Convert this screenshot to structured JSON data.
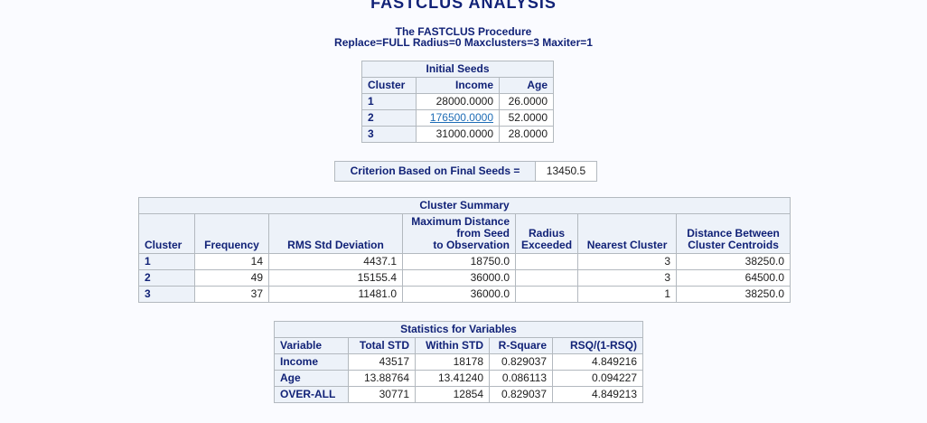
{
  "page": {
    "title": "FASTCLUS ANALYSIS",
    "subtitle1": "The FASTCLUS Procedure",
    "subtitle2": "Replace=FULL Radius=0 Maxclusters=3 Maxiter=1"
  },
  "colors": {
    "header_bg": "#edf2f9",
    "header_text": "#112277",
    "page_bg": "#fafbff",
    "border": "#b3b9bf",
    "link": "#1f6db6"
  },
  "initial_seeds": {
    "caption": "Initial Seeds",
    "columns": [
      "Cluster",
      "Income",
      "Age"
    ],
    "rows": [
      [
        "1",
        "28000.0000",
        "26.0000"
      ],
      [
        "2",
        "176500.0000",
        "52.0000"
      ],
      [
        "3",
        "31000.0000",
        "28.0000"
      ]
    ]
  },
  "criterion": {
    "label": "Criterion Based on Final Seeds =",
    "value": "13450.5"
  },
  "cluster_summary": {
    "caption": "Cluster Summary",
    "columns": [
      "Cluster",
      "Frequency",
      "RMS Std Deviation",
      "Maximum Distance\nfrom Seed\nto Observation",
      "Radius\nExceeded",
      "Nearest Cluster",
      "Distance Between\nCluster Centroids"
    ],
    "rows": [
      [
        "1",
        "14",
        "4437.1",
        "18750.0",
        "",
        "3",
        "38250.0"
      ],
      [
        "2",
        "49",
        "15155.4",
        "36000.0",
        "",
        "3",
        "64500.0"
      ],
      [
        "3",
        "37",
        "11481.0",
        "36000.0",
        "",
        "1",
        "38250.0"
      ]
    ]
  },
  "statistics": {
    "caption": "Statistics for Variables",
    "columns": [
      "Variable",
      "Total STD",
      "Within STD",
      "R-Square",
      "RSQ/(1-RSQ)"
    ],
    "rows": [
      [
        "Income",
        "43517",
        "18178",
        "0.829037",
        "4.849216"
      ],
      [
        "Age",
        "13.88764",
        "13.41240",
        "0.086113",
        "0.094227"
      ],
      [
        "OVER-ALL",
        "30771",
        "12854",
        "0.829037",
        "4.849213"
      ]
    ]
  }
}
